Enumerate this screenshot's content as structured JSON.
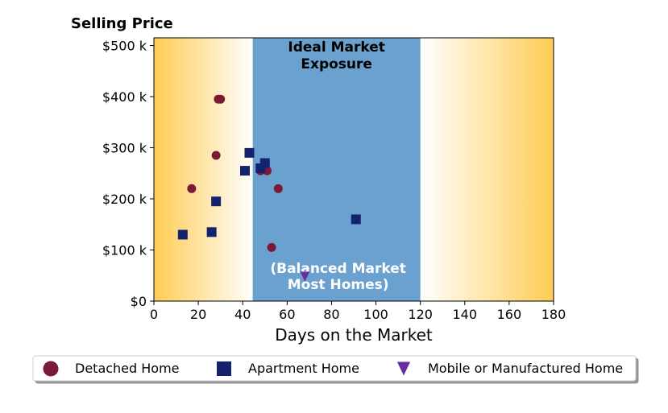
{
  "chart_data": {
    "type": "scatter",
    "title": "Selling Price",
    "xlabel": "Days on the Market",
    "ylabel": "",
    "xlim": [
      0,
      180
    ],
    "ylim": [
      0,
      515000
    ],
    "x_ticks": [
      0,
      20,
      40,
      60,
      80,
      100,
      120,
      140,
      160,
      180
    ],
    "y_ticks": [
      {
        "value": 0,
        "label": "$0"
      },
      {
        "value": 100000,
        "label": "$100 k"
      },
      {
        "value": 200000,
        "label": "$200 k"
      },
      {
        "value": 300000,
        "label": "$300 k"
      },
      {
        "value": 400000,
        "label": "$400 k"
      },
      {
        "value": 500000,
        "label": "$500 k"
      }
    ],
    "grid": false,
    "legend_position": "bottom",
    "background_gradient": {
      "edge_color": "#ffcc55",
      "center_color": "#ffffff",
      "gradient_to_x": 45,
      "gradient_from_x": 120
    },
    "shaded_region": {
      "x_range": [
        44.5,
        120
      ],
      "color": "#6aa1cf",
      "label_top": [
        "Ideal Market",
        "Exposure"
      ],
      "label_bottom": [
        "(Balanced Market",
        "Most Homes)"
      ]
    },
    "series": [
      {
        "name": "Detached Home",
        "marker": "circle",
        "color": "#7b1a36",
        "points": [
          [
            17,
            220000
          ],
          [
            28,
            285000
          ],
          [
            29,
            395000
          ],
          [
            30,
            395000
          ],
          [
            48,
            255000
          ],
          [
            51,
            255000
          ],
          [
            53,
            105000
          ],
          [
            56,
            220000
          ]
        ]
      },
      {
        "name": "Apartment Home",
        "marker": "square",
        "color": "#14236e",
        "points": [
          [
            13,
            130000
          ],
          [
            26,
            135000
          ],
          [
            28,
            195000
          ],
          [
            41,
            255000
          ],
          [
            43,
            290000
          ],
          [
            48,
            260000
          ],
          [
            50,
            270000
          ],
          [
            91,
            160000
          ]
        ]
      },
      {
        "name": "Mobile or Manufactured Home",
        "marker": "triangle-down",
        "color": "#6b2ea0",
        "points": [
          [
            68,
            48000
          ]
        ]
      }
    ]
  }
}
